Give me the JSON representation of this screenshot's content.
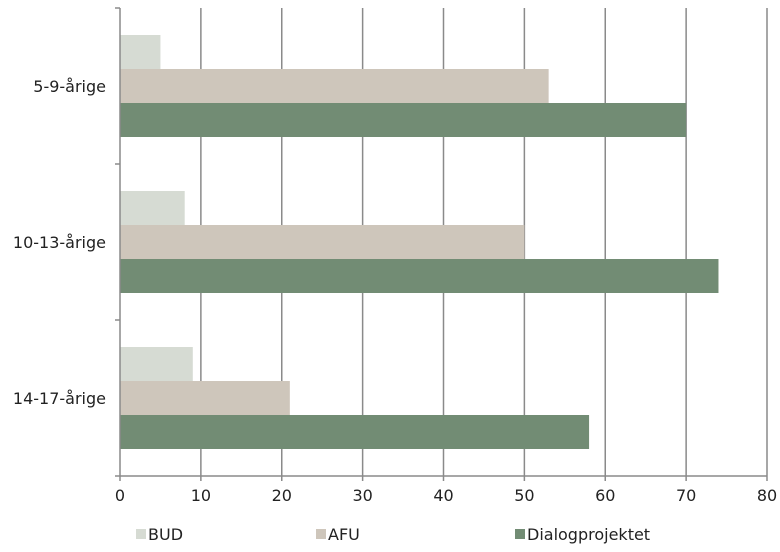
{
  "chart_data": {
    "type": "bar",
    "orientation": "horizontal",
    "title": "",
    "xlabel": "",
    "ylabel": "",
    "xlim": [
      0,
      80
    ],
    "x_ticks": [
      0,
      10,
      20,
      30,
      40,
      50,
      60,
      70,
      80
    ],
    "grid": "vertical",
    "legend_position": "bottom",
    "categories": [
      "5-9-årige",
      "10-13-årige",
      "14-17-årige"
    ],
    "series": [
      {
        "name": "BUD",
        "color": "#d6dbd3",
        "values": [
          5,
          8,
          9
        ]
      },
      {
        "name": "AFU",
        "color": "#cec6bb",
        "values": [
          53,
          50,
          21
        ]
      },
      {
        "name": "Dialogprojektet",
        "color": "#728c74",
        "values": [
          70,
          74,
          58
        ]
      }
    ]
  }
}
